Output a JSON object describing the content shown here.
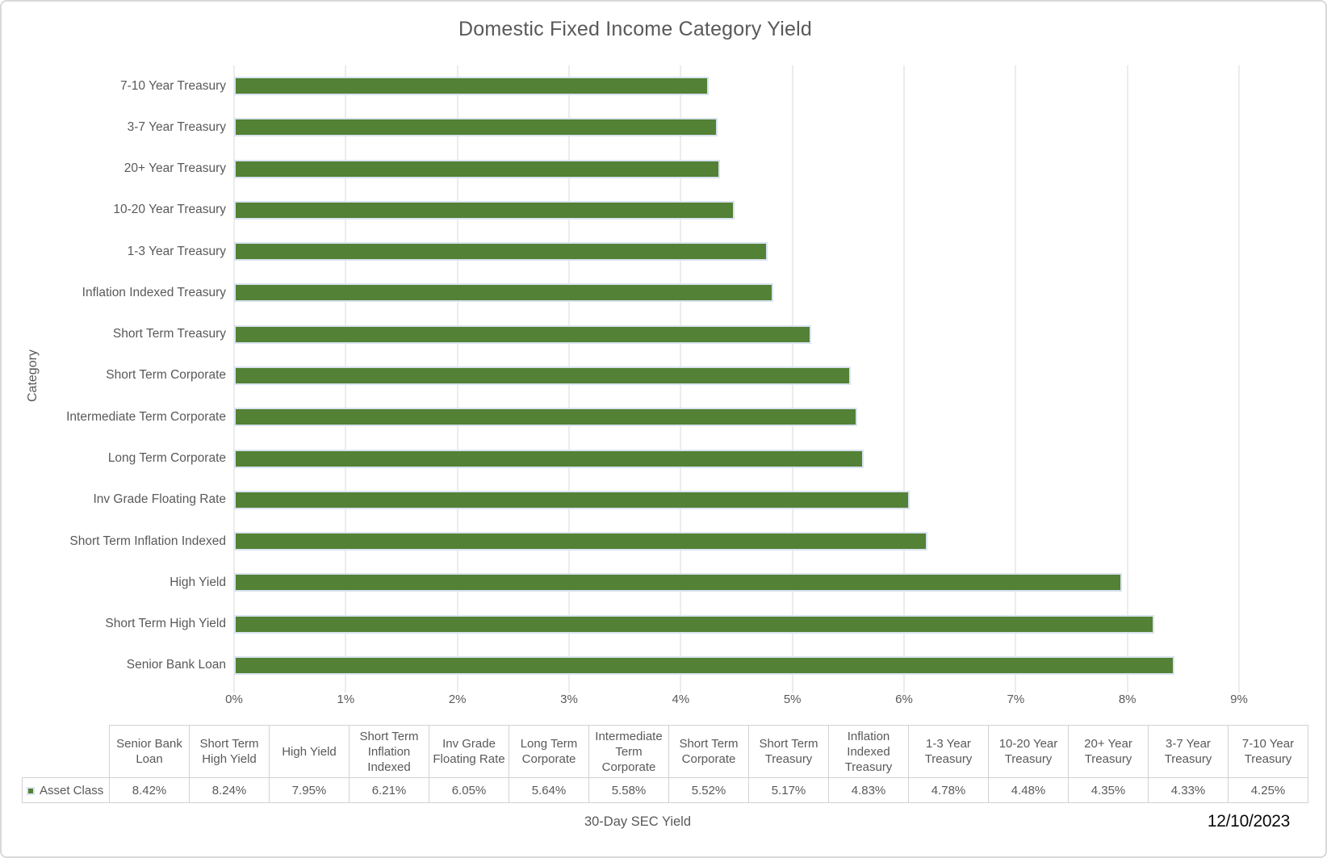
{
  "chart_data": {
    "type": "bar",
    "orientation": "horizontal",
    "title": "Domestic Fixed Income Category Yield",
    "xlabel": "30-Day SEC Yield",
    "ylabel": "Category",
    "xlim": [
      0,
      9
    ],
    "x_tick_labels": [
      "0%",
      "1%",
      "2%",
      "3%",
      "4%",
      "5%",
      "6%",
      "7%",
      "8%",
      "9%"
    ],
    "grid": true,
    "legend_position": "bottom-left-of-table",
    "series_name": "Asset Class",
    "categories": [
      "7-10 Year Treasury",
      "3-7 Year Treasury",
      "20+ Year Treasury",
      "10-20 Year Treasury",
      "1-3 Year Treasury",
      "Inflation Indexed Treasury",
      "Short Term Treasury",
      "Short Term Corporate",
      "Intermediate Term Corporate",
      "Long Term Corporate",
      "Inv Grade Floating Rate",
      "Short Term Inflation Indexed",
      "High Yield",
      "Short Term High Yield",
      "Senior Bank Loan"
    ],
    "values": [
      4.25,
      4.33,
      4.35,
      4.48,
      4.78,
      4.83,
      5.17,
      5.52,
      5.58,
      5.64,
      6.05,
      6.21,
      7.95,
      8.24,
      8.42
    ],
    "data_table": {
      "series_label": "Asset Class",
      "columns": [
        "Senior Bank Loan",
        "Short Term High Yield",
        "High Yield",
        "Short Term Inflation Indexed",
        "Inv Grade Floating Rate",
        "Long Term Corporate",
        "Intermediate Term Corporate",
        "Short Term Corporate",
        "Short Term Treasury",
        "Inflation Indexed Treasury",
        "1-3 Year Treasury",
        "10-20 Year Treasury",
        "20+ Year Treasury",
        "3-7 Year Treasury",
        "7-10 Year Treasury"
      ],
      "values": [
        "8.42%",
        "8.24%",
        "7.95%",
        "6.21%",
        "6.05%",
        "5.64%",
        "5.58%",
        "5.52%",
        "5.17%",
        "4.83%",
        "4.78%",
        "4.48%",
        "4.35%",
        "4.33%",
        "4.25%"
      ]
    }
  },
  "footer": {
    "date_label": "12/10/2023"
  },
  "colors": {
    "bar_fill": "#538135",
    "bar_border": "#d9e3f0",
    "gridline": "#d9d9d9",
    "text": "#595959",
    "table_border": "#d2d2d2",
    "date_text": "#0a0a0a"
  }
}
